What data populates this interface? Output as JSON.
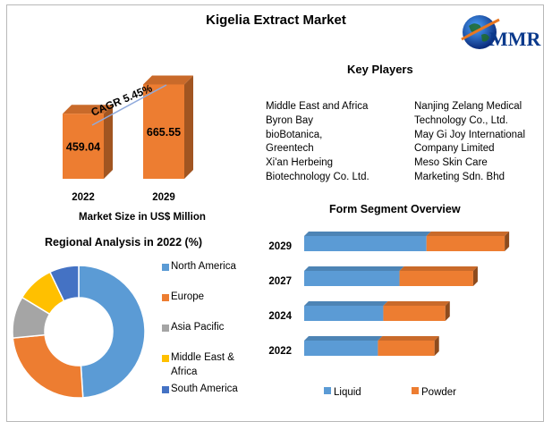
{
  "title": "Kigelia Extract Market",
  "logo": {
    "text": "MMR"
  },
  "market_size": {
    "cagr_label": "CAGR 5.45%",
    "caption": "Market Size in US$ Million",
    "bar_color": "#ed7d31"
  },
  "key_players": {
    "title": "Key Players",
    "col1": [
      "Middle East and Africa",
      "Byron Bay",
      "bioBotanica,",
      "Greentech",
      "Xi'an Herbeing",
      "Biotechnology Co. Ltd."
    ],
    "col2": [
      "Nanjing Zelang Medical",
      "Technology Co., Ltd.",
      "May Gi Joy International",
      "Company Limited",
      "Meso Skin Care",
      "Marketing Sdn. Bhd"
    ]
  },
  "regional": {
    "title": "Regional Analysis in 2022 (%)",
    "legend": [
      "North America",
      "Europe",
      "Asia Pacific",
      "Middle East &",
      "Africa",
      "South America"
    ]
  },
  "form_segment": {
    "title": "Form Segment Overview"
  },
  "chart_data": [
    {
      "type": "bar",
      "categories": [
        "2022",
        "2029"
      ],
      "values": [
        459.04,
        665.55
      ],
      "xlabel": "Market Size in US$ Million",
      "annotation": "CAGR 5.45%",
      "color": "#ed7d31"
    },
    {
      "type": "pie",
      "title": "Regional Analysis in 2022 (%)",
      "donut": true,
      "labels": [
        "North America",
        "Europe",
        "Asia Pacific",
        "Middle East & Africa",
        "South America"
      ],
      "values": [
        48,
        24,
        10,
        9,
        7
      ],
      "colors": [
        "#5b9bd5",
        "#ed7d31",
        "#a5a5a5",
        "#ffc000",
        "#4472c4"
      ],
      "legend": "right"
    },
    {
      "type": "bar",
      "orientation": "horizontal",
      "stacked": true,
      "title": "Form Segment Overview",
      "categories": [
        "2029",
        "2027",
        "2024",
        "2022"
      ],
      "series": [
        {
          "name": "Liquid",
          "values": [
            136,
            106,
            88,
            82
          ],
          "color": "#5b9bd5"
        },
        {
          "name": "Powder",
          "values": [
            87,
            82,
            69,
            63
          ],
          "color": "#ed7d31"
        }
      ],
      "legend": "bottom"
    }
  ]
}
